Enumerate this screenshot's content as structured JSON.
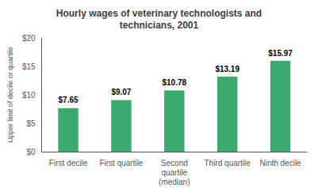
{
  "chart_data": {
    "type": "bar",
    "title": "Hourly wages of veterinary technologists and\ntechnicians, 2001",
    "categories": [
      "First decile",
      "First quartile",
      "Second\nquartile\n(median)",
      "Third quartile",
      "Ninth decile"
    ],
    "values": [
      7.65,
      9.07,
      10.78,
      13.19,
      15.97
    ],
    "value_labels": [
      "$7.65",
      "$9.07",
      "$10.78",
      "$13.19",
      "$15.97"
    ],
    "color": "#3aaa6e",
    "ylabel": "Upper limit of decile or quartile",
    "ylim": [
      0,
      20
    ],
    "yticks": [
      {
        "value": 0,
        "label": "$0"
      },
      {
        "value": 5,
        "label": "$5"
      },
      {
        "value": 10,
        "label": "$10"
      },
      {
        "value": 15,
        "label": "$15"
      },
      {
        "value": 20,
        "label": "$20"
      }
    ],
    "data_labels": true,
    "grid": false
  }
}
